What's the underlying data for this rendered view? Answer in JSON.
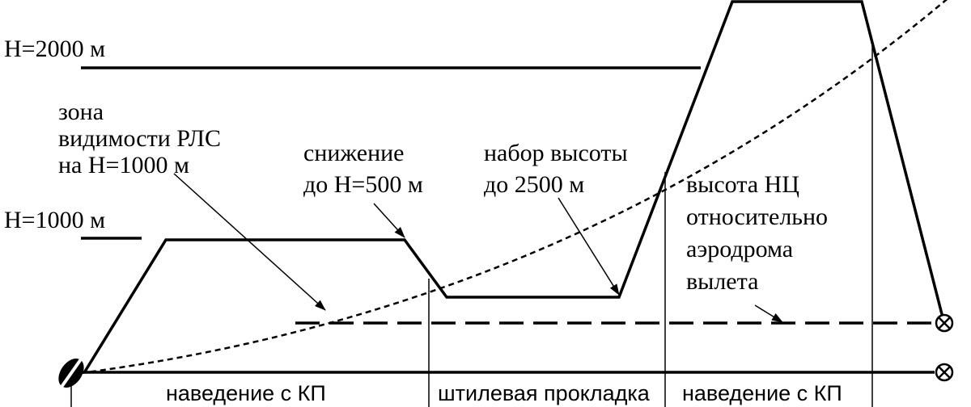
{
  "labels": {
    "h2000": "H=2000 м",
    "h1000": "H=1000 м",
    "radar_zone": [
      "зона",
      "видимости РЛС",
      "на H=1000 м"
    ],
    "descent": [
      "снижение",
      "до H=500 м"
    ],
    "climb": [
      "набор высоты",
      "до 2500 м"
    ],
    "target_height": [
      "высота НЦ",
      "относительно",
      "аэродрома",
      "вылета"
    ],
    "segments": [
      "наведение с КП",
      "штилевая прокладка",
      "наведение с КП"
    ]
  }
}
